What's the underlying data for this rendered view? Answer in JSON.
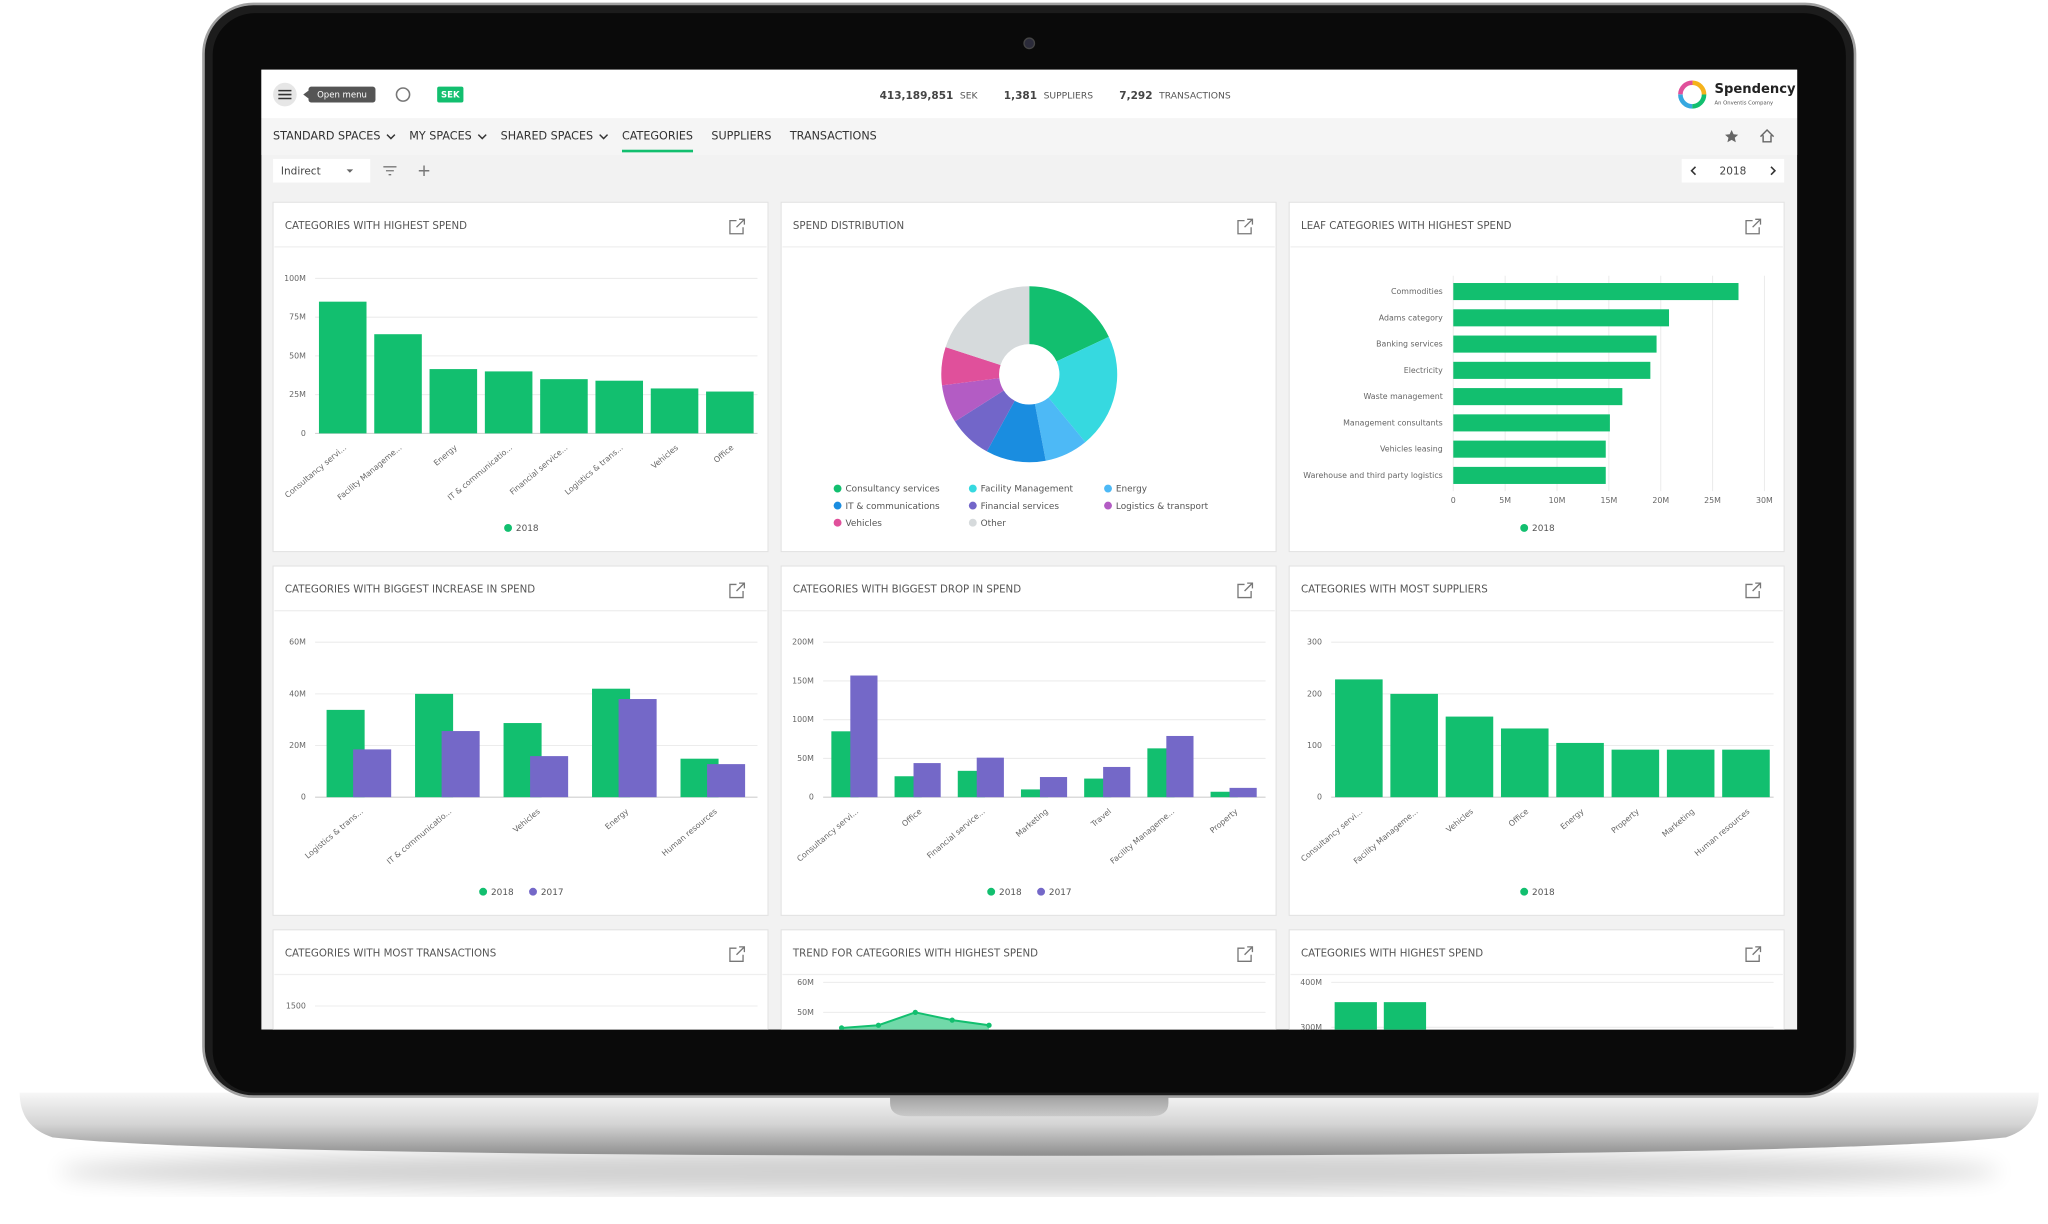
{
  "header": {
    "menu_tooltip": "Open menu",
    "currency_badge": "SEK",
    "stats": [
      {
        "value": "413,189,851",
        "label": "SEK"
      },
      {
        "value": "1,381",
        "label": "SUPPLIERS"
      },
      {
        "value": "7,292",
        "label": "TRANSACTIONS"
      }
    ],
    "logo": "Spendency",
    "logo_tagline": "An Onventis Company"
  },
  "nav": {
    "items": [
      {
        "label": "STANDARD SPACES",
        "menu": true
      },
      {
        "label": "MY SPACES",
        "menu": true
      },
      {
        "label": "SHARED SPACES",
        "menu": true
      },
      {
        "label": "CATEGORIES",
        "menu": false
      },
      {
        "label": "SUPPLIERS",
        "menu": false
      },
      {
        "label": "TRANSACTIONS",
        "menu": false
      }
    ],
    "active": 3
  },
  "toolbar": {
    "filter": "Indirect",
    "year": "2018"
  },
  "chart_data": [
    {
      "type": "bar",
      "title": "CATEGORIES WITH HIGHEST SPEND",
      "categories": [
        "Consultancy servi...",
        "Facility Manageme...",
        "Energy",
        "IT & communicatio...",
        "Financial service...",
        "Logistics & trans...",
        "Vehicles",
        "Office"
      ],
      "series": [
        {
          "name": "2018",
          "color": "#12bf6f",
          "values": [
            85000000,
            64000000,
            41500000,
            40000000,
            35000000,
            34000000,
            29000000,
            27000000
          ]
        }
      ],
      "ylim": [
        0,
        100000000
      ],
      "yticks": [
        0,
        {
          "value": 25000000,
          "label": "25M"
        },
        {
          "value": 50000000,
          "label": "50M"
        },
        {
          "value": 75000000,
          "label": "75M"
        },
        {
          "value": 100000000,
          "label": "100M"
        }
      ],
      "grid": true
    },
    {
      "type": "pie",
      "title": "SPEND DISTRIBUTION",
      "donut": true,
      "categories": [
        "Consultancy services",
        "Facility Management",
        "Energy",
        "IT & communications",
        "Financial services",
        "Logistics & transport",
        "Vehicles",
        "Other"
      ],
      "values": [
        18,
        21,
        8,
        11,
        8,
        7,
        7,
        20
      ],
      "colors": [
        "#12bf6f",
        "#36d9e0",
        "#4db9f6",
        "#1a8de0",
        "#7266c9",
        "#b35cc4",
        "#e0509b",
        "#d6dadc"
      ]
    },
    {
      "type": "bar",
      "horizontal": true,
      "title": "LEAF CATEGORIES WITH HIGHEST SPEND",
      "categories": [
        "Commodities",
        "Adams category",
        "Banking services",
        "Electricity",
        "Waste management",
        "Management consultants",
        "Vehicles leasing",
        "Warehouse and third party logistics"
      ],
      "series": [
        {
          "name": "2018",
          "color": "#12bf6f",
          "values": [
            27500000,
            20800000,
            19600000,
            19000000,
            16300000,
            15100000,
            14700000,
            14700000
          ]
        }
      ],
      "xlim": [
        0,
        30000000
      ],
      "xticks": [
        0,
        {
          "value": 5000000,
          "label": "5M"
        },
        {
          "value": 10000000,
          "label": "10M"
        },
        {
          "value": 15000000,
          "label": "15M"
        },
        {
          "value": 20000000,
          "label": "20M"
        },
        {
          "value": 25000000,
          "label": "25M"
        },
        {
          "value": 30000000,
          "label": "30M"
        }
      ],
      "grid": true
    },
    {
      "type": "bar",
      "title": "CATEGORIES WITH BIGGEST INCREASE IN SPEND",
      "categories": [
        "Logistics & trans...",
        "IT & communicatio...",
        "Vehicles",
        "Energy",
        "Human resources"
      ],
      "series": [
        {
          "name": "2018",
          "color": "#12bf6f",
          "values": [
            33800000,
            40000000,
            28700000,
            42000000,
            14900000
          ]
        },
        {
          "name": "2017",
          "color": "#7468c8",
          "values": [
            18500000,
            25600000,
            15900000,
            38000000,
            12800000
          ]
        }
      ],
      "ylim": [
        0,
        60000000
      ],
      "yticks": [
        0,
        {
          "value": 20000000,
          "label": "20M"
        },
        {
          "value": 40000000,
          "label": "40M"
        },
        {
          "value": 60000000,
          "label": "60M"
        }
      ],
      "grid": true
    },
    {
      "type": "bar",
      "title": "CATEGORIES WITH BIGGEST DROP IN SPEND",
      "categories": [
        "Consultancy servi...",
        "Office",
        "Financial service...",
        "Marketing",
        "Travel",
        "Facility Manageme...",
        "Property"
      ],
      "series": [
        {
          "name": "2018",
          "color": "#12bf6f",
          "values": [
            85000000,
            27000000,
            34000000,
            10000000,
            24000000,
            63000000,
            7000000
          ]
        },
        {
          "name": "2017",
          "color": "#7468c8",
          "values": [
            157000000,
            44000000,
            51000000,
            26000000,
            39000000,
            79000000,
            12000000
          ]
        }
      ],
      "ylim": [
        0,
        200000000
      ],
      "yticks": [
        0,
        {
          "value": 50000000,
          "label": "50M"
        },
        {
          "value": 100000000,
          "label": "100M"
        },
        {
          "value": 150000000,
          "label": "150M"
        },
        {
          "value": 200000000,
          "label": "200M"
        }
      ],
      "grid": true
    },
    {
      "type": "bar",
      "title": "CATEGORIES WITH MOST SUPPLIERS",
      "categories": [
        "Consultancy servi...",
        "Facility Manageme...",
        "Vehicles",
        "Office",
        "Energy",
        "Property",
        "Marketing",
        "Human resources"
      ],
      "series": [
        {
          "name": "2018",
          "color": "#12bf6f",
          "values": [
            228,
            200,
            156,
            133,
            105,
            92,
            92,
            92
          ]
        }
      ],
      "ylim": [
        0,
        300
      ],
      "yticks": [
        0,
        100,
        200,
        300
      ],
      "grid": true
    },
    {
      "type": "bar",
      "title": "CATEGORIES WITH MOST TRANSACTIONS",
      "categories": [],
      "series": [],
      "ylim": [
        0,
        1500
      ],
      "yticks": [
        1500
      ],
      "grid": true
    },
    {
      "type": "line",
      "title": "TREND FOR CATEGORIES WITH HIGHEST SPEND",
      "categories": [
        null,
        null,
        null,
        null,
        null
      ],
      "series": [
        {
          "color": "#12bf6f",
          "values": [
            44800000,
            45700000,
            50000000,
            47400000,
            45700000
          ]
        }
      ],
      "ylim": [
        0,
        60000000
      ],
      "yticks": [
        {
          "value": 50000000,
          "label": "50M"
        },
        {
          "value": 60000000,
          "label": "60M"
        }
      ],
      "grid": true
    },
    {
      "type": "bar",
      "title": "CATEGORIES WITH HIGHEST SPEND",
      "categories": [
        null,
        null
      ],
      "series": [
        {
          "color": "#12bf6f",
          "values": [
            356000000,
            356000000
          ]
        }
      ],
      "ylim": [
        0,
        400000000
      ],
      "yticks": [
        {
          "value": 300000000,
          "label": "300M"
        },
        {
          "value": 400000000,
          "label": "400M"
        }
      ],
      "grid": true
    }
  ]
}
